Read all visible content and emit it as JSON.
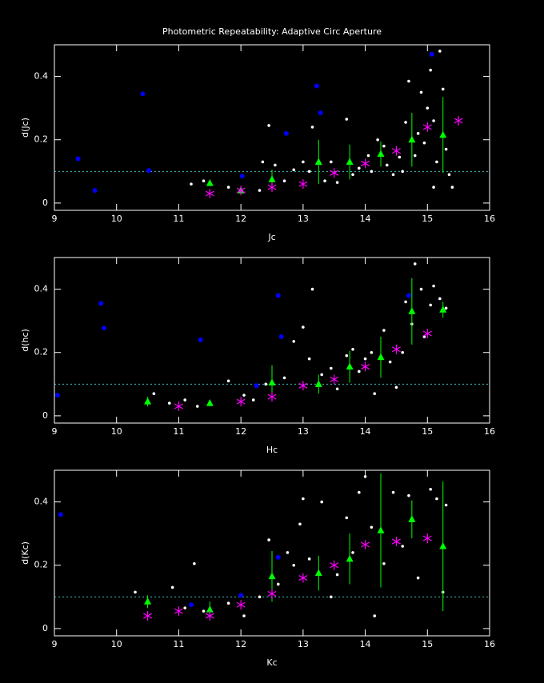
{
  "chart_data": [
    {
      "type": "scatter",
      "title": "Photometric Repeatability: Adaptive Circ Aperture",
      "x_label": "Jc",
      "y_label": "d(Jc)",
      "xlim": [
        9,
        16
      ],
      "ylim": [
        -0.023,
        0.5
      ],
      "xticks": [
        9,
        10,
        11,
        12,
        13,
        14,
        15,
        16
      ],
      "yticks": [
        0,
        0.2,
        0.4
      ],
      "reference_line": 0.1,
      "reference_line_color": "#40c0c0",
      "series": [
        {
          "color": "#ffffff",
          "marker": "dot",
          "x": [
            11.2,
            11.4,
            11.8,
            12.3,
            12.35,
            12.45,
            12.55,
            12.7,
            12.85,
            13.0,
            13.1,
            13.15,
            13.35,
            13.45,
            13.55,
            13.7,
            13.8,
            13.9,
            14.05,
            14.1,
            14.2,
            14.3,
            14.35,
            14.45,
            14.55,
            14.6,
            14.65,
            14.7,
            14.8,
            14.85,
            14.9,
            14.95,
            15.0,
            15.05,
            15.1,
            15.15,
            15.2,
            15.25,
            15.3,
            15.35,
            15.1,
            15.4
          ],
          "values": [
            0.06,
            0.07,
            0.05,
            0.04,
            0.13,
            0.245,
            0.12,
            0.07,
            0.105,
            0.13,
            0.1,
            0.24,
            0.07,
            0.13,
            0.065,
            0.265,
            0.09,
            0.11,
            0.15,
            0.1,
            0.2,
            0.18,
            0.12,
            0.09,
            0.145,
            0.1,
            0.255,
            0.385,
            0.15,
            0.22,
            0.35,
            0.19,
            0.3,
            0.42,
            0.26,
            0.13,
            0.48,
            0.36,
            0.17,
            0.09,
            0.05,
            0.05
          ]
        },
        {
          "color": "#0000ff",
          "marker": "big-dot",
          "x": [
            9.38,
            9.65,
            10.42,
            10.52,
            12.02,
            12.73,
            13.22,
            13.28,
            15.07
          ],
          "values": [
            0.14,
            0.04,
            0.345,
            0.103,
            0.085,
            0.22,
            0.37,
            0.285,
            0.47
          ]
        },
        {
          "color": "#00ff00",
          "marker": "triangle",
          "x": [
            11.5,
            12.0,
            12.5,
            13.25,
            13.75,
            14.25,
            14.75,
            15.25
          ],
          "values": [
            0.063,
            0.04,
            0.075,
            0.13,
            0.13,
            0.155,
            0.2,
            0.215
          ],
          "errors": [
            0.01,
            0.005,
            0.03,
            0.07,
            0.055,
            0.04,
            0.085,
            0.12
          ]
        },
        {
          "color": "#ff00ff",
          "marker": "asterisk",
          "x": [
            11.5,
            12.0,
            12.5,
            13.0,
            13.5,
            14.0,
            14.5,
            15.0,
            15.5
          ],
          "values": [
            0.03,
            0.04,
            0.05,
            0.06,
            0.095,
            0.125,
            0.165,
            0.24,
            0.26
          ]
        }
      ]
    },
    {
      "type": "scatter",
      "x_label": "Hc",
      "y_label": "d(hc)",
      "xlim": [
        9,
        16
      ],
      "ylim": [
        -0.023,
        0.5
      ],
      "xticks": [
        9,
        10,
        11,
        12,
        13,
        14,
        15,
        16
      ],
      "yticks": [
        0,
        0.2,
        0.4
      ],
      "reference_line": 0.1,
      "reference_line_color": "#40c0c0",
      "series": [
        {
          "color": "#ffffff",
          "marker": "dot",
          "x": [
            10.6,
            10.85,
            11.1,
            11.3,
            11.8,
            12.05,
            12.2,
            12.4,
            12.7,
            12.85,
            13.0,
            13.1,
            13.15,
            13.3,
            13.45,
            13.55,
            13.7,
            13.8,
            13.9,
            14.0,
            14.1,
            14.15,
            14.3,
            14.4,
            14.5,
            14.6,
            14.65,
            14.75,
            14.8,
            14.9,
            14.95,
            15.05,
            15.1,
            15.2,
            15.3
          ],
          "values": [
            0.07,
            0.04,
            0.05,
            0.03,
            0.11,
            0.065,
            0.05,
            0.1,
            0.12,
            0.235,
            0.28,
            0.18,
            0.4,
            0.13,
            0.15,
            0.085,
            0.19,
            0.21,
            0.14,
            0.18,
            0.2,
            0.07,
            0.27,
            0.17,
            0.09,
            0.2,
            0.36,
            0.29,
            0.48,
            0.4,
            0.25,
            0.35,
            0.41,
            0.37,
            0.34
          ]
        },
        {
          "color": "#0000ff",
          "marker": "big-dot",
          "x": [
            9.05,
            9.75,
            9.8,
            11.35,
            12.25,
            12.6,
            12.65,
            14.7
          ],
          "values": [
            0.065,
            0.355,
            0.277,
            0.24,
            0.095,
            0.38,
            0.25,
            0.38
          ]
        },
        {
          "color": "#00ff00",
          "marker": "triangle",
          "x": [
            10.5,
            11.5,
            12.5,
            13.25,
            13.75,
            14.25,
            14.75,
            15.25
          ],
          "values": [
            0.045,
            0.04,
            0.105,
            0.1,
            0.155,
            0.185,
            0.33,
            0.335
          ],
          "errors": [
            0.015,
            0.01,
            0.055,
            0.03,
            0.05,
            0.065,
            0.105,
            0.025
          ]
        },
        {
          "color": "#ff00ff",
          "marker": "asterisk",
          "x": [
            11.0,
            12.0,
            12.5,
            13.0,
            13.5,
            14.0,
            14.5,
            15.0
          ],
          "values": [
            0.03,
            0.045,
            0.06,
            0.095,
            0.115,
            0.155,
            0.21,
            0.26
          ]
        }
      ]
    },
    {
      "type": "scatter",
      "x_label": "Kc",
      "y_label": "d(Kc)",
      "xlim": [
        9,
        16
      ],
      "ylim": [
        -0.023,
        0.5
      ],
      "xticks": [
        9,
        10,
        11,
        12,
        13,
        14,
        15,
        16
      ],
      "yticks": [
        0,
        0.2,
        0.4
      ],
      "reference_line": 0.1,
      "reference_line_color": "#40c0c0",
      "series": [
        {
          "color": "#ffffff",
          "marker": "dot",
          "x": [
            10.3,
            10.9,
            11.1,
            11.25,
            11.4,
            11.8,
            12.05,
            12.3,
            12.45,
            12.6,
            12.75,
            12.85,
            12.95,
            13.0,
            13.1,
            13.3,
            13.45,
            13.55,
            13.7,
            13.8,
            13.9,
            14.0,
            14.1,
            14.15,
            14.3,
            14.45,
            14.6,
            14.7,
            14.85,
            15.05,
            15.15,
            15.25,
            15.3
          ],
          "values": [
            0.115,
            0.13,
            0.065,
            0.205,
            0.055,
            0.08,
            0.04,
            0.1,
            0.28,
            0.14,
            0.24,
            0.2,
            0.33,
            0.41,
            0.22,
            0.4,
            0.1,
            0.17,
            0.35,
            0.24,
            0.43,
            0.48,
            0.32,
            0.04,
            0.205,
            0.43,
            0.26,
            0.42,
            0.16,
            0.44,
            0.41,
            0.115,
            0.39
          ]
        },
        {
          "color": "#0000ff",
          "marker": "big-dot",
          "x": [
            9.1,
            11.2,
            12.0,
            12.6
          ],
          "values": [
            0.36,
            0.075,
            0.105,
            0.225
          ]
        },
        {
          "color": "#00ff00",
          "marker": "triangle",
          "x": [
            10.5,
            11.5,
            12.5,
            13.25,
            13.75,
            14.25,
            14.75,
            15.25
          ],
          "values": [
            0.085,
            0.06,
            0.165,
            0.175,
            0.22,
            0.31,
            0.345,
            0.26
          ],
          "errors": [
            0.02,
            0.025,
            0.08,
            0.055,
            0.08,
            0.18,
            0.06,
            0.205
          ]
        },
        {
          "color": "#ff00ff",
          "marker": "asterisk",
          "x": [
            10.5,
            11.0,
            11.5,
            12.0,
            12.5,
            13.0,
            13.5,
            14.0,
            14.5,
            15.0
          ],
          "values": [
            0.04,
            0.055,
            0.04,
            0.075,
            0.11,
            0.16,
            0.2,
            0.265,
            0.275,
            0.285
          ]
        }
      ]
    }
  ]
}
